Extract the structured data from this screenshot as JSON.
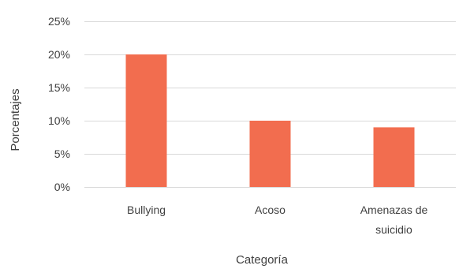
{
  "chart_data": {
    "type": "bar",
    "categories": [
      [
        "Bullying"
      ],
      [
        "Acoso"
      ],
      [
        "Amenazas de",
        "suicidio"
      ]
    ],
    "values": [
      20,
      10,
      9
    ],
    "ylim": [
      0,
      25
    ],
    "yticks": [
      0,
      5,
      10,
      15,
      20,
      25
    ],
    "ytick_format": "{v}%",
    "xlabel": "Categoría",
    "ylabel": "Porcentajes",
    "grid": true,
    "legend": "none",
    "colors": {
      "bar": "#F26D4F",
      "grid": "#D9D9D9",
      "text": "#404040"
    }
  }
}
